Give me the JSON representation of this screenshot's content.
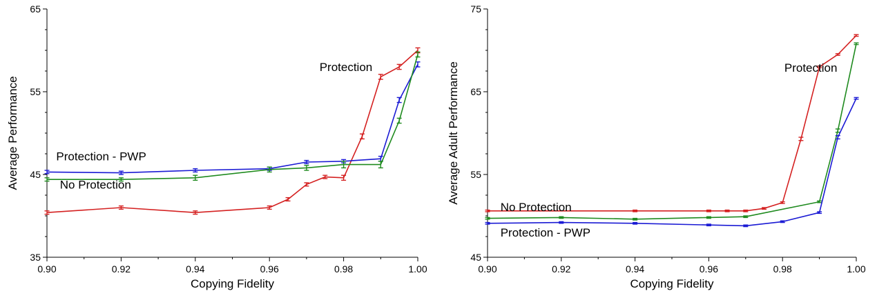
{
  "chart_data": [
    {
      "type": "line",
      "title": "",
      "xlabel": "Copying Fidelity",
      "ylabel": "Average Performance",
      "xlim": [
        0.9,
        1.0
      ],
      "ylim": [
        35,
        65
      ],
      "xticks": [
        0.9,
        0.92,
        0.94,
        0.96,
        0.98,
        1.0
      ],
      "xtick_labels": [
        "0.90",
        "0.92",
        "0.94",
        "0.96",
        "0.98",
        "1.00"
      ],
      "yticks": [
        35,
        45,
        55,
        65
      ],
      "ytick_labels": [
        "35",
        "45",
        "55",
        "65"
      ],
      "grid": false,
      "legend": "none",
      "series": [
        {
          "name": "Protection",
          "color": "#d42020",
          "x": [
            0.9,
            0.92,
            0.94,
            0.96,
            0.965,
            0.97,
            0.975,
            0.98,
            0.985,
            0.99,
            0.995,
            1.0
          ],
          "y": [
            40.4,
            41.0,
            40.4,
            41.0,
            42.0,
            43.8,
            44.7,
            44.6,
            49.6,
            56.8,
            58.0,
            60.0
          ],
          "error": [
            0.2,
            0.2,
            0.2,
            0.2,
            0.2,
            0.2,
            0.2,
            0.3,
            0.3,
            0.3,
            0.3,
            0.3
          ]
        },
        {
          "name": "Protection - PWP",
          "color": "#1a1ad4",
          "x": [
            0.9,
            0.92,
            0.94,
            0.96,
            0.97,
            0.98,
            0.99,
            0.995,
            1.0
          ],
          "y": [
            45.3,
            45.2,
            45.5,
            45.7,
            46.5,
            46.6,
            46.9,
            54.0,
            58.3
          ],
          "error": [
            0.2,
            0.2,
            0.2,
            0.2,
            0.2,
            0.2,
            0.3,
            0.3,
            0.3
          ]
        },
        {
          "name": "No Protection",
          "color": "#1e8a1e",
          "x": [
            0.9,
            0.92,
            0.94,
            0.96,
            0.97,
            0.98,
            0.99,
            0.995,
            1.0
          ],
          "y": [
            44.4,
            44.4,
            44.6,
            45.6,
            45.8,
            46.2,
            46.2,
            51.5,
            59.5
          ],
          "error": [
            0.2,
            0.2,
            0.3,
            0.3,
            0.3,
            0.4,
            0.4,
            0.3,
            0.3
          ]
        }
      ],
      "annotations": [
        {
          "text": "Protection",
          "x": 0.9735,
          "y": 57.5
        },
        {
          "text": "Protection - PWP",
          "x": 0.9025,
          "y": 46.7
        },
        {
          "text": "No Protection",
          "x": 0.9035,
          "y": 43.3
        }
      ]
    },
    {
      "type": "line",
      "title": "",
      "xlabel": "Copying Fidelity",
      "ylabel": "Average Adult Performance",
      "xlim": [
        0.9,
        1.0
      ],
      "ylim": [
        45,
        75
      ],
      "xticks": [
        0.9,
        0.92,
        0.94,
        0.96,
        0.98,
        1.0
      ],
      "xtick_labels": [
        "0.90",
        "0.92",
        "0.94",
        "0.96",
        "0.98",
        "1.00"
      ],
      "yticks": [
        45,
        55,
        65,
        75
      ],
      "ytick_labels": [
        "45",
        "55",
        "65",
        "75"
      ],
      "grid": false,
      "legend": "none",
      "series": [
        {
          "name": "Protection",
          "color": "#d42020",
          "x": [
            0.9,
            0.94,
            0.96,
            0.965,
            0.97,
            0.975,
            0.98,
            0.985,
            0.99,
            0.995,
            1.0
          ],
          "y": [
            50.6,
            50.6,
            50.6,
            50.6,
            50.6,
            50.9,
            51.6,
            59.3,
            68.0,
            69.5,
            71.8
          ],
          "error": [
            0.1,
            0.1,
            0.1,
            0.1,
            0.1,
            0.1,
            0.1,
            0.2,
            0.1,
            0.1,
            0.1
          ]
        },
        {
          "name": "No Protection",
          "color": "#1e8a1e",
          "x": [
            0.9,
            0.92,
            0.94,
            0.96,
            0.97,
            0.99,
            0.995,
            1.0
          ],
          "y": [
            49.7,
            49.8,
            49.6,
            49.8,
            49.9,
            51.7,
            60.3,
            70.8
          ],
          "error": [
            0.1,
            0.1,
            0.1,
            0.1,
            0.1,
            0.1,
            0.2,
            0.1
          ]
        },
        {
          "name": "Protection - PWP",
          "color": "#1a1ad4",
          "x": [
            0.9,
            0.92,
            0.94,
            0.96,
            0.97,
            0.98,
            0.99,
            0.995,
            1.0
          ],
          "y": [
            49.1,
            49.2,
            49.1,
            48.9,
            48.8,
            49.3,
            50.4,
            59.5,
            64.2
          ],
          "error": [
            0.1,
            0.1,
            0.1,
            0.1,
            0.1,
            0.1,
            0.1,
            0.2,
            0.1
          ]
        }
      ],
      "annotations": [
        {
          "text": "Protection",
          "x": 0.9805,
          "y": 67.4
        },
        {
          "text": "No Protection",
          "x": 0.9035,
          "y": 50.6
        },
        {
          "text": "Protection - PWP",
          "x": 0.9035,
          "y": 47.5
        }
      ]
    }
  ]
}
